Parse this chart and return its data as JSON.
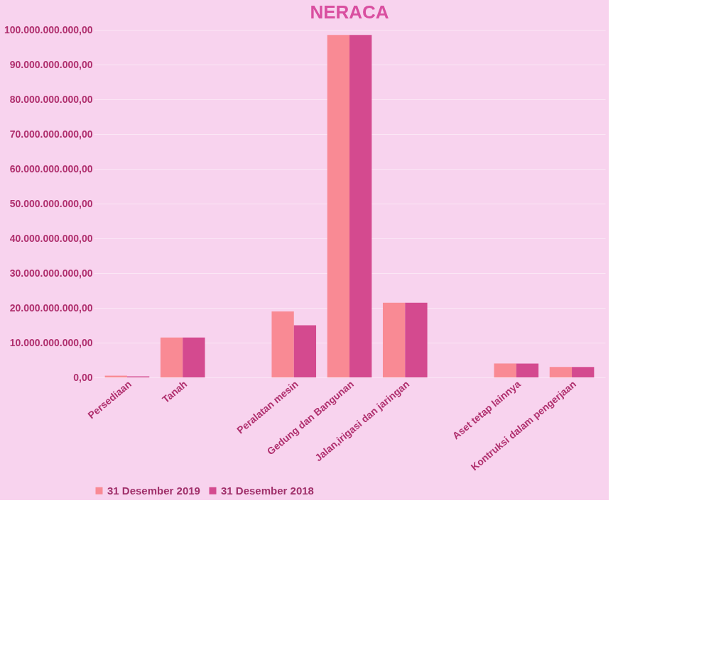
{
  "chart_data": {
    "type": "bar",
    "title": "NERACA",
    "categories": [
      "Persediaan",
      "Tanah",
      null,
      "Peralatan mesin",
      "Gedung dan Bangunan",
      "Jalan,irigasi dan jaringan",
      null,
      "Aset tetap lainnya",
      "Kontruksi dalam pengerjaan"
    ],
    "series": [
      {
        "name": "31 Desember 2019",
        "color": "#f98a94",
        "values": [
          500000000,
          11500000000,
          null,
          19000000000,
          98500000000,
          21500000000,
          null,
          4000000000,
          3000000000
        ]
      },
      {
        "name": "31 Desember 2018",
        "color": "#d44a8f",
        "values": [
          300000000,
          11500000000,
          null,
          15000000000,
          98500000000,
          21500000000,
          null,
          4000000000,
          3000000000
        ]
      }
    ],
    "ylim": [
      0,
      100000000000
    ],
    "yticks": [
      {
        "value": 0,
        "label": "0,00"
      },
      {
        "value": 10000000000,
        "label": "10.000.000.000,00"
      },
      {
        "value": 20000000000,
        "label": "20.000.000.000,00"
      },
      {
        "value": 30000000000,
        "label": "30.000.000.000,00"
      },
      {
        "value": 40000000000,
        "label": "40.000.000.000,00"
      },
      {
        "value": 50000000000,
        "label": "50.000.000.000,00"
      },
      {
        "value": 60000000000,
        "label": "60.000.000.000,00"
      },
      {
        "value": 70000000000,
        "label": "70.000.000.000,00"
      },
      {
        "value": 80000000000,
        "label": "80.000.000.000,00"
      },
      {
        "value": 90000000000,
        "label": "90.000.000.000,00"
      },
      {
        "value": 100000000000,
        "label": "100.000.000.000,00"
      }
    ],
    "grid": "y",
    "legend": "bottom"
  }
}
